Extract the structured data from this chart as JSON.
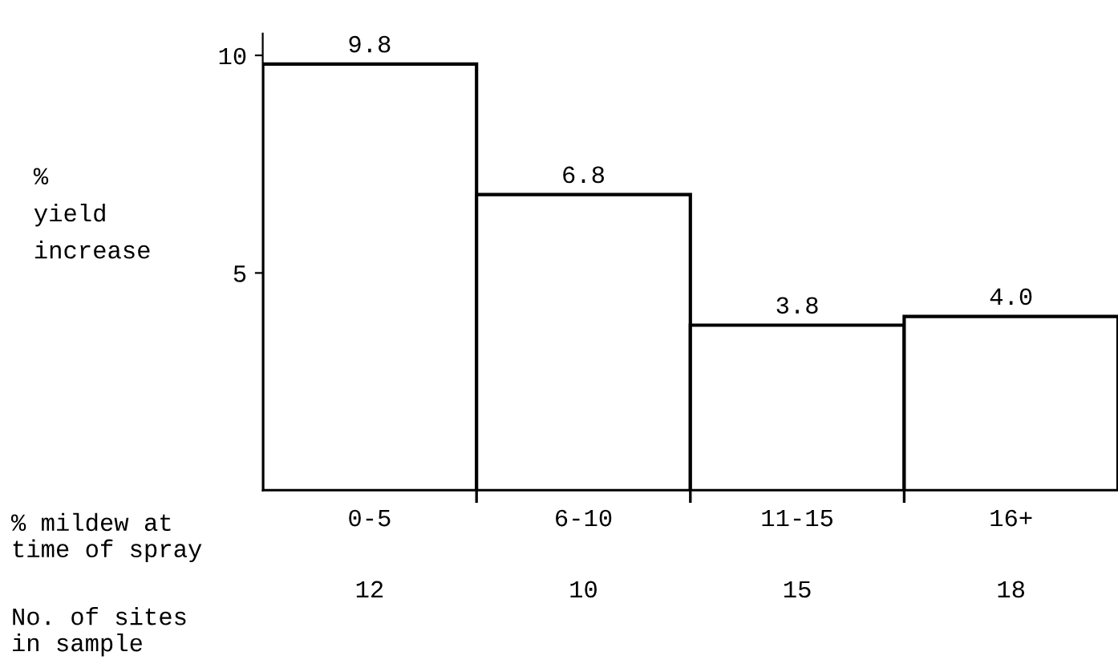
{
  "chart_data": {
    "type": "bar",
    "ylabel": "%\nyield\nincrease",
    "xlabel": "% mildew at\ntime of spray",
    "categories": [
      "0-5",
      "6-10",
      "11-15",
      "16+"
    ],
    "values": [
      9.8,
      6.8,
      3.8,
      4.0
    ],
    "color": "#ffffff",
    "value_labels": [
      "9.8",
      "6.8",
      "3.8",
      "4.0"
    ],
    "ylim": [
      0,
      10.5
    ],
    "yticks": [
      5,
      10
    ],
    "grid": false,
    "annotations": [
      "No. of sites\nin sample",
      "12",
      "10",
      "15",
      "18"
    ]
  }
}
